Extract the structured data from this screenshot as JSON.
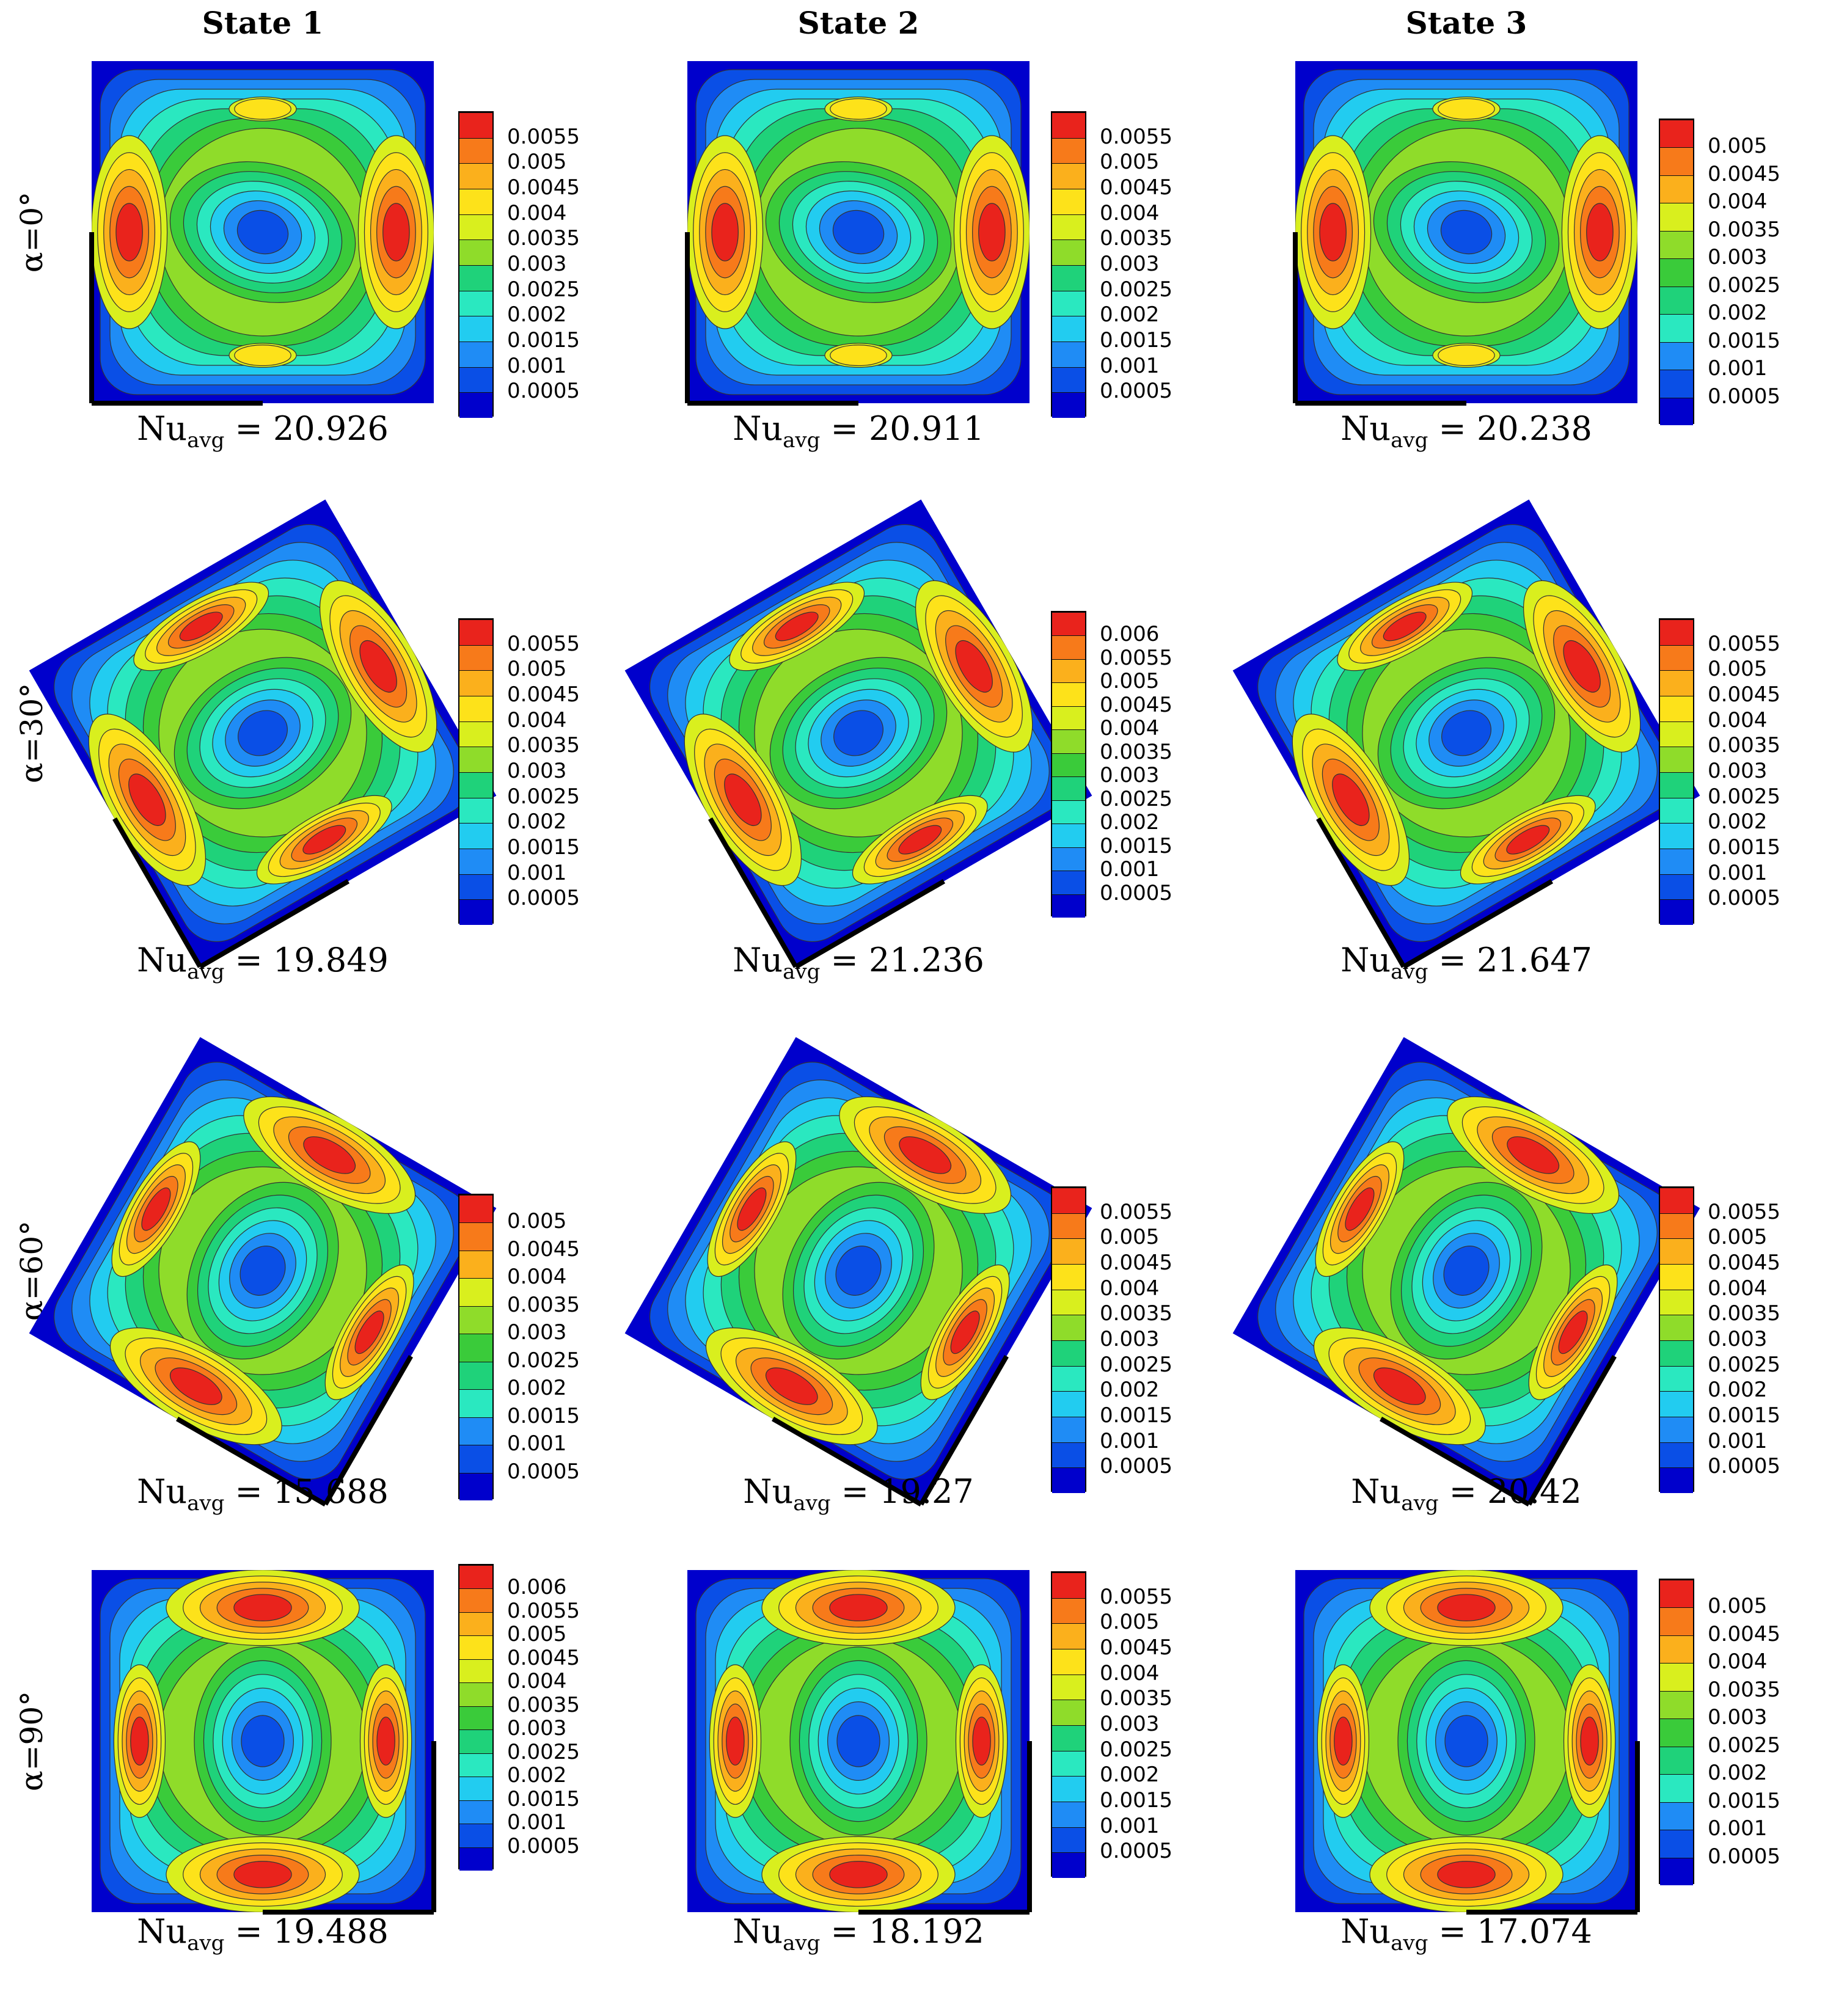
{
  "figure": {
    "column_titles": [
      "State 1",
      "State 2",
      "State 3"
    ],
    "row_labels": [
      "α=0°",
      "α=30°",
      "α=60°",
      "α=90°"
    ],
    "nu_symbol": "Nu",
    "nu_subscript": "avg",
    "nu_equals": "=",
    "colormap": [
      "#0000cc",
      "#0a4fe6",
      "#1f8cf5",
      "#22ccf0",
      "#2ae8c0",
      "#1fd27a",
      "#3acb3a",
      "#8fdc2a",
      "#d9ef1e",
      "#fde21a",
      "#fbb01c",
      "#f77a1a",
      "#e9231c"
    ],
    "panels": [
      {
        "row": 0,
        "col": 0,
        "angle": 0,
        "nu_value": "20.926",
        "legend": [
          "0.0055",
          "0.005",
          "0.0045",
          "0.004",
          "0.0035",
          "0.003",
          "0.0025",
          "0.002",
          "0.0015",
          "0.001",
          "0.0005"
        ]
      },
      {
        "row": 0,
        "col": 1,
        "angle": 0,
        "nu_value": "20.911",
        "legend": [
          "0.0055",
          "0.005",
          "0.0045",
          "0.004",
          "0.0035",
          "0.003",
          "0.0025",
          "0.002",
          "0.0015",
          "0.001",
          "0.0005"
        ]
      },
      {
        "row": 0,
        "col": 2,
        "angle": 0,
        "nu_value": "20.238",
        "legend": [
          "0.005",
          "0.0045",
          "0.004",
          "0.0035",
          "0.003",
          "0.0025",
          "0.002",
          "0.0015",
          "0.001",
          "0.0005"
        ]
      },
      {
        "row": 1,
        "col": 0,
        "angle": 30,
        "nu_value": "19.849",
        "legend": [
          "0.0055",
          "0.005",
          "0.0045",
          "0.004",
          "0.0035",
          "0.003",
          "0.0025",
          "0.002",
          "0.0015",
          "0.001",
          "0.0005"
        ]
      },
      {
        "row": 1,
        "col": 1,
        "angle": 30,
        "nu_value": "21.236",
        "legend": [
          "0.006",
          "0.0055",
          "0.005",
          "0.0045",
          "0.004",
          "0.0035",
          "0.003",
          "0.0025",
          "0.002",
          "0.0015",
          "0.001",
          "0.0005"
        ]
      },
      {
        "row": 1,
        "col": 2,
        "angle": 30,
        "nu_value": "21.647",
        "legend": [
          "0.0055",
          "0.005",
          "0.0045",
          "0.004",
          "0.0035",
          "0.003",
          "0.0025",
          "0.002",
          "0.0015",
          "0.001",
          "0.0005"
        ]
      },
      {
        "row": 2,
        "col": 0,
        "angle": 60,
        "nu_value": "15.688",
        "legend": [
          "0.005",
          "0.0045",
          "0.004",
          "0.0035",
          "0.003",
          "0.0025",
          "0.002",
          "0.0015",
          "0.001",
          "0.0005"
        ]
      },
      {
        "row": 2,
        "col": 1,
        "angle": 60,
        "nu_value": "19.27",
        "legend": [
          "0.0055",
          "0.005",
          "0.0045",
          "0.004",
          "0.0035",
          "0.003",
          "0.0025",
          "0.002",
          "0.0015",
          "0.001",
          "0.0005"
        ]
      },
      {
        "row": 2,
        "col": 2,
        "angle": 60,
        "nu_value": "20.42",
        "legend": [
          "0.0055",
          "0.005",
          "0.0045",
          "0.004",
          "0.0035",
          "0.003",
          "0.0025",
          "0.002",
          "0.0015",
          "0.001",
          "0.0005"
        ]
      },
      {
        "row": 3,
        "col": 0,
        "angle": 90,
        "nu_value": "19.488",
        "legend": [
          "0.006",
          "0.0055",
          "0.005",
          "0.0045",
          "0.004",
          "0.0035",
          "0.003",
          "0.0025",
          "0.002",
          "0.0015",
          "0.001",
          "0.0005"
        ]
      },
      {
        "row": 3,
        "col": 1,
        "angle": 90,
        "nu_value": "18.192",
        "legend": [
          "0.0055",
          "0.005",
          "0.0045",
          "0.004",
          "0.0035",
          "0.003",
          "0.0025",
          "0.002",
          "0.0015",
          "0.001",
          "0.0005"
        ]
      },
      {
        "row": 3,
        "col": 2,
        "angle": 90,
        "nu_value": "17.074",
        "legend": [
          "0.005",
          "0.0045",
          "0.004",
          "0.0035",
          "0.003",
          "0.0025",
          "0.002",
          "0.0015",
          "0.001",
          "0.0005"
        ]
      }
    ]
  }
}
